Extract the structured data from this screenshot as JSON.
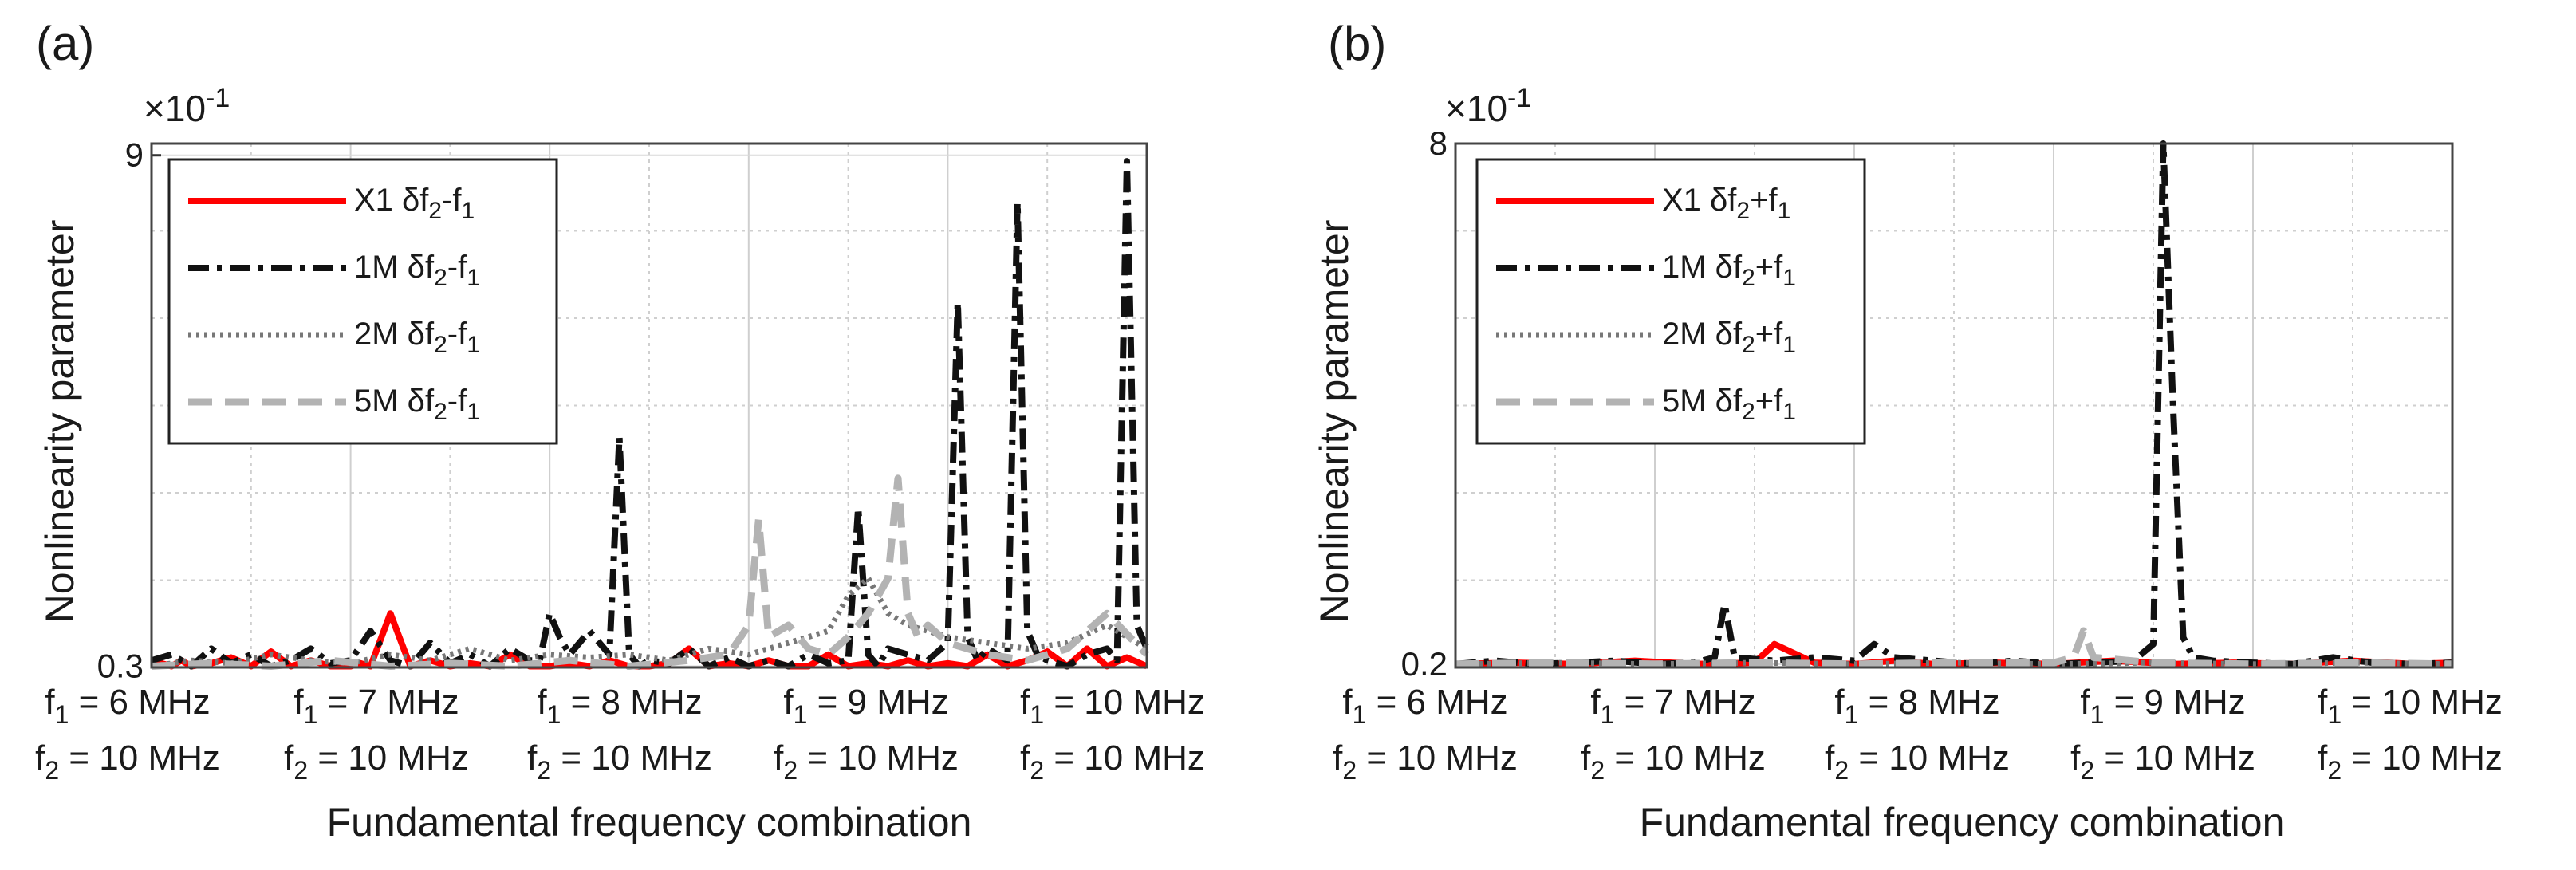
{
  "chart_data": [
    {
      "type": "line",
      "panel_label": "(a)",
      "exponent_label": "×10-1",
      "exponent_base": "×10",
      "exponent_power": "-1",
      "ylabel": "Nonlinearity parameter",
      "xlabel": "Fundamental frequency combination",
      "ylim": [
        0.28,
        9.2
      ],
      "yticks": [
        0.3,
        9
      ],
      "grid": true,
      "legend_position": "top-left",
      "categories": [
        {
          "f1_label": "f1 = 6 MHz",
          "f2_label": "f2 = 10 MHz"
        },
        {
          "f1_label": "f1 = 7 MHz",
          "f2_label": "f2 = 10 MHz"
        },
        {
          "f1_label": "f1 = 8 MHz",
          "f2_label": "f2 = 10 MHz"
        },
        {
          "f1_label": "f1 = 9 MHz",
          "f2_label": "f2 = 10 MHz"
        },
        {
          "f1_label": "f1 = 10 MHz",
          "f2_label": "f2 = 10 MHz"
        }
      ],
      "series": [
        {
          "name": "X1 δf2-f1",
          "instrument": "X1",
          "quantity": "δf2-f1",
          "color": "#ff0000",
          "style": "solid",
          "x": [
            0,
            0.05,
            0.1,
            0.15,
            0.2,
            0.3,
            0.4,
            0.5,
            0.6,
            0.7,
            0.8,
            0.9,
            1.0,
            1.05,
            1.1,
            1.2,
            1.3,
            1.4,
            1.5,
            1.6,
            1.7,
            1.8,
            1.9,
            2.0,
            2.1,
            2.2,
            2.3,
            2.4,
            2.5,
            2.6,
            2.7,
            2.8,
            2.9,
            3.0,
            3.1,
            3.2,
            3.3,
            3.4,
            3.5,
            3.6,
            3.7,
            3.8,
            3.9,
            4.0,
            4.1,
            4.2,
            4.3,
            4.4,
            4.5,
            4.6,
            4.7,
            4.8,
            4.9,
            5.0
          ],
          "values": [
            0.3,
            0.35,
            0.3,
            0.4,
            0.3,
            0.35,
            0.45,
            0.3,
            0.55,
            0.3,
            0.4,
            0.3,
            0.3,
            0.35,
            0.3,
            1.2,
            0.3,
            0.4,
            0.3,
            0.35,
            0.3,
            0.5,
            0.3,
            0.3,
            0.35,
            0.3,
            0.4,
            0.3,
            0.3,
            0.35,
            0.6,
            0.3,
            0.35,
            0.3,
            0.4,
            0.3,
            0.3,
            0.5,
            0.3,
            0.35,
            0.3,
            0.4,
            0.3,
            0.35,
            0.3,
            0.5,
            0.3,
            0.4,
            0.55,
            0.3,
            0.6,
            0.3,
            0.45,
            0.3
          ]
        },
        {
          "name": "1M δf2-f1",
          "instrument": "1M",
          "quantity": "δf2-f1",
          "color": "#111111",
          "style": "dashdot",
          "x": [
            0,
            0.1,
            0.2,
            0.3,
            0.4,
            0.5,
            0.6,
            0.7,
            0.8,
            0.9,
            1.0,
            1.1,
            1.2,
            1.3,
            1.4,
            1.5,
            1.6,
            1.7,
            1.8,
            1.9,
            1.95,
            2.0,
            2.05,
            2.1,
            2.2,
            2.3,
            2.35,
            2.4,
            2.45,
            2.5,
            2.6,
            2.7,
            2.8,
            2.9,
            3.0,
            3.1,
            3.2,
            3.3,
            3.4,
            3.5,
            3.55,
            3.6,
            3.65,
            3.7,
            3.8,
            3.9,
            4.0,
            4.05,
            4.1,
            4.15,
            4.2,
            4.3,
            4.35,
            4.4,
            4.45,
            4.5,
            4.6,
            4.7,
            4.8,
            4.85,
            4.9,
            4.95,
            5.0
          ],
          "values": [
            0.4,
            0.5,
            0.3,
            0.6,
            0.35,
            0.5,
            0.3,
            0.4,
            0.6,
            0.35,
            0.4,
            0.9,
            0.4,
            0.3,
            0.7,
            0.35,
            0.5,
            0.3,
            0.6,
            0.4,
            0.4,
            1.2,
            0.8,
            0.5,
            0.9,
            0.5,
            4.2,
            0.5,
            0.3,
            0.4,
            0.35,
            0.6,
            0.3,
            0.45,
            0.3,
            0.4,
            0.3,
            0.5,
            0.35,
            0.4,
            3.0,
            0.5,
            0.3,
            0.6,
            0.5,
            0.4,
            0.7,
            6.5,
            0.8,
            0.4,
            0.6,
            0.4,
            8.2,
            0.9,
            0.5,
            0.4,
            0.3,
            0.5,
            0.6,
            0.4,
            8.9,
            1.0,
            0.6
          ]
        },
        {
          "name": "2M δf2-f1",
          "instrument": "2M",
          "quantity": "δf2-f1",
          "color": "#777777",
          "style": "dotted",
          "x": [
            0,
            0.2,
            0.4,
            0.6,
            0.8,
            1.0,
            1.2,
            1.4,
            1.6,
            1.8,
            2.0,
            2.2,
            2.4,
            2.6,
            2.8,
            3.0,
            3.2,
            3.4,
            3.5,
            3.6,
            3.7,
            3.8,
            3.9,
            4.0,
            4.2,
            4.4,
            4.6,
            4.8,
            5.0
          ],
          "values": [
            0.3,
            0.4,
            0.35,
            0.5,
            0.4,
            0.35,
            0.5,
            0.4,
            0.6,
            0.4,
            0.5,
            0.45,
            0.5,
            0.4,
            0.6,
            0.5,
            0.7,
            0.9,
            1.5,
            1.8,
            1.2,
            1.0,
            0.9,
            0.8,
            0.7,
            0.6,
            0.7,
            1.0,
            0.6
          ]
        },
        {
          "name": "5M δf2-f1",
          "instrument": "5M",
          "quantity": "δf2-f1",
          "color": "#b3b3b3",
          "style": "dashed",
          "x": [
            0,
            0.3,
            0.6,
            0.9,
            1.2,
            1.5,
            1.8,
            2.1,
            2.4,
            2.7,
            2.9,
            3.0,
            3.05,
            3.1,
            3.2,
            3.3,
            3.4,
            3.5,
            3.6,
            3.7,
            3.75,
            3.8,
            3.85,
            3.9,
            4.0,
            4.2,
            4.4,
            4.6,
            4.8,
            5.0
          ],
          "values": [
            0.3,
            0.35,
            0.3,
            0.4,
            0.3,
            0.35,
            0.3,
            0.4,
            0.3,
            0.4,
            0.5,
            1.0,
            2.8,
            0.8,
            1.0,
            0.6,
            0.5,
            0.8,
            1.2,
            1.8,
            3.5,
            1.2,
            0.8,
            1.0,
            0.7,
            0.5,
            0.4,
            0.6,
            1.2,
            0.5
          ]
        }
      ]
    },
    {
      "type": "line",
      "panel_label": "(b)",
      "exponent_label": "×10-1",
      "exponent_base": "×10",
      "exponent_power": "-1",
      "ylabel": "Nonlinearity parameter",
      "xlabel": "Fundamental frequency combination",
      "ylim": [
        0.15,
        8.0
      ],
      "yticks": [
        0.2,
        8
      ],
      "grid": true,
      "legend_position": "top-left",
      "categories": [
        {
          "f1_label": "f1 = 6 MHz",
          "f2_label": "f2 = 10 MHz"
        },
        {
          "f1_label": "f1 = 7 MHz",
          "f2_label": "f2 = 10 MHz"
        },
        {
          "f1_label": "f1 = 8 MHz",
          "f2_label": "f2 = 10 MHz"
        },
        {
          "f1_label": "f1 = 9 MHz",
          "f2_label": "f2 = 10 MHz"
        },
        {
          "f1_label": "f1 = 10 MHz",
          "f2_label": "f2 = 10 MHz"
        }
      ],
      "series": [
        {
          "name": "X1 δf2+f1",
          "instrument": "X1",
          "quantity": "δf2+f1",
          "color": "#ff0000",
          "style": "solid",
          "x": [
            0,
            0.3,
            0.6,
            0.9,
            1.2,
            1.5,
            1.6,
            1.8,
            2.0,
            2.2,
            2.4,
            2.7,
            3.0,
            3.3,
            3.6,
            3.9,
            4.2,
            4.5,
            4.8,
            5.0
          ],
          "values": [
            0.2,
            0.22,
            0.2,
            0.25,
            0.2,
            0.22,
            0.5,
            0.22,
            0.2,
            0.25,
            0.2,
            0.22,
            0.2,
            0.25,
            0.2,
            0.22,
            0.2,
            0.25,
            0.2,
            0.22
          ]
        },
        {
          "name": "1M δf2+f1",
          "instrument": "1M",
          "quantity": "δf2+f1",
          "color": "#111111",
          "style": "dashdot",
          "x": [
            0,
            0.2,
            0.4,
            0.6,
            0.8,
            1.0,
            1.2,
            1.3,
            1.35,
            1.4,
            1.6,
            1.8,
            2.0,
            2.1,
            2.2,
            2.4,
            2.6,
            2.8,
            3.0,
            3.2,
            3.4,
            3.5,
            3.55,
            3.6,
            3.65,
            3.7,
            3.8,
            4.0,
            4.2,
            4.4,
            4.6,
            4.8,
            5.0
          ],
          "values": [
            0.2,
            0.25,
            0.2,
            0.22,
            0.25,
            0.2,
            0.22,
            0.3,
            1.1,
            0.3,
            0.25,
            0.3,
            0.25,
            0.5,
            0.3,
            0.25,
            0.2,
            0.25,
            0.2,
            0.22,
            0.25,
            0.5,
            8.0,
            4.0,
            0.6,
            0.3,
            0.25,
            0.22,
            0.2,
            0.3,
            0.22,
            0.2,
            0.22
          ]
        },
        {
          "name": "2M δf2+f1",
          "instrument": "2M",
          "quantity": "δf2+f1",
          "color": "#777777",
          "style": "dotted",
          "x": [
            0,
            0.5,
            1.0,
            1.5,
            2.0,
            2.5,
            3.0,
            3.5,
            4.0,
            4.5,
            5.0
          ],
          "values": [
            0.2,
            0.22,
            0.2,
            0.22,
            0.2,
            0.22,
            0.2,
            0.22,
            0.2,
            0.22,
            0.2
          ]
        },
        {
          "name": "5M δf2+f1",
          "instrument": "5M",
          "quantity": "δf2+f1",
          "color": "#b3b3b3",
          "style": "dashed",
          "x": [
            0,
            0.5,
            1.0,
            1.5,
            2.0,
            2.5,
            3.0,
            3.1,
            3.15,
            3.2,
            3.5,
            4.0,
            4.5,
            5.0
          ],
          "values": [
            0.2,
            0.22,
            0.2,
            0.22,
            0.2,
            0.22,
            0.22,
            0.3,
            0.7,
            0.3,
            0.22,
            0.2,
            0.22,
            0.2
          ]
        }
      ]
    }
  ]
}
